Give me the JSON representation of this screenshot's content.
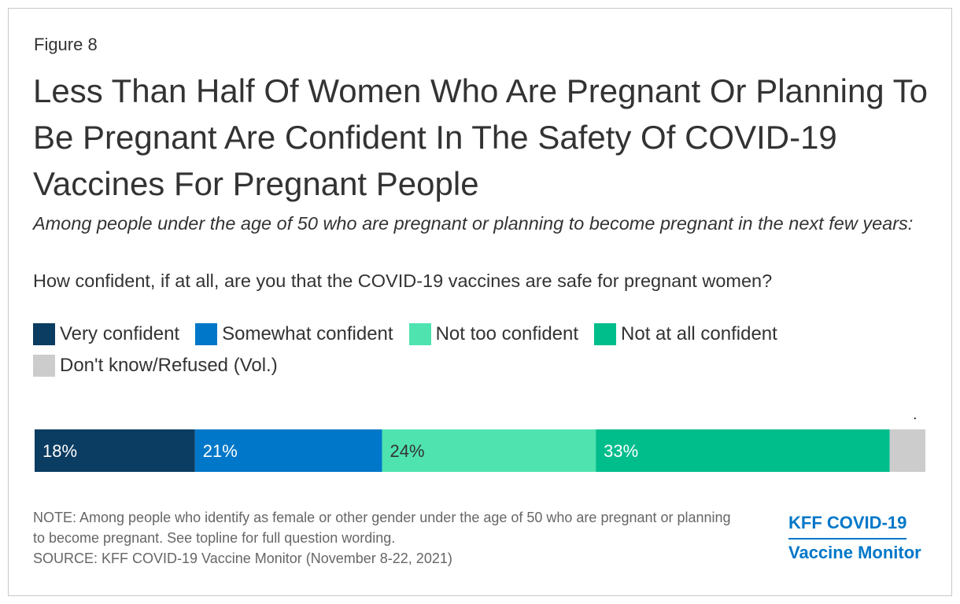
{
  "figure_label": "Figure 8",
  "chart_data": {
    "type": "bar",
    "orientation": "horizontal-stacked",
    "title": "Less Than Half Of Women Who Are Pregnant Or Planning To Be Pregnant Are Confident In The Safety Of COVID-19 Vaccines For Pregnant People",
    "subtitle": "Among people under the age of 50 who are pregnant or planning to become pregnant in the next few years:",
    "question": "How confident, if at all, are you that the COVID-19 vaccines are safe for pregnant women?",
    "series": [
      {
        "name": "Very confident",
        "value": 18,
        "label": "18%",
        "color": "#0b3c61",
        "label_color": "#ffffff"
      },
      {
        "name": "Somewhat confident",
        "value": 21,
        "label": "21%",
        "color": "#0077c8",
        "label_color": "#ffffff"
      },
      {
        "name": "Not too confident",
        "value": 24,
        "label": "24%",
        "color": "#4fe3b0",
        "label_color": "#333333"
      },
      {
        "name": "Not at all confident",
        "value": 33,
        "label": "33%",
        "color": "#00bd8c",
        "label_color": "#ffffff"
      },
      {
        "name": "Don't know/Refused (Vol.)",
        "value": 4,
        "label": "",
        "color": "#cccccc",
        "label_color": "#333333"
      }
    ],
    "above_bar_mark": "."
  },
  "notes": {
    "note": "NOTE: Among people who identify as female or other gender under the age of 50 who are pregnant or planning to become pregnant. See topline for full question wording.",
    "source": "SOURCE: KFF COVID-19 Vaccine Monitor (November 8-22, 2021)"
  },
  "logo": {
    "line1": "KFF COVID-19",
    "line2": "Vaccine Monitor",
    "color": "#0077c8"
  }
}
